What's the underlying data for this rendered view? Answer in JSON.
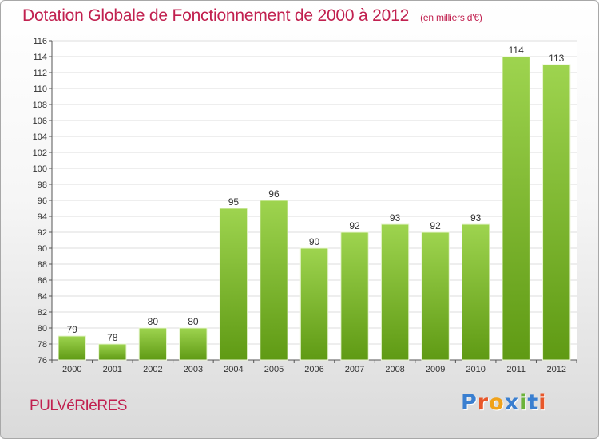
{
  "header": {
    "title": "Dotation Globale de Fonctionnement de 2000 à 2012",
    "subtitle": "(en milliers d'€)"
  },
  "footer": {
    "commune": "PULVéRIèRES",
    "logo": "Proxiti"
  },
  "colors": {
    "title": "#c1204f",
    "bar_top": "#9ed44f",
    "bar_bottom": "#5f9a14",
    "logo_letters": [
      "#3a7fd0",
      "#e8572a",
      "#f0a21a",
      "#3a7fd0",
      "#6bb33a",
      "#3a7fd0",
      "#e8572a"
    ]
  },
  "chart_data": {
    "type": "bar",
    "categories": [
      "2000",
      "2001",
      "2002",
      "2003",
      "2004",
      "2005",
      "2006",
      "2007",
      "2008",
      "2009",
      "2010",
      "2011",
      "2012"
    ],
    "values": [
      79,
      78,
      80,
      80,
      95,
      96,
      90,
      92,
      93,
      92,
      93,
      114,
      113
    ],
    "ylim": [
      76,
      116
    ],
    "ytick_step": 2,
    "grid": "horizontal",
    "legend": "none",
    "data_labels": true
  }
}
